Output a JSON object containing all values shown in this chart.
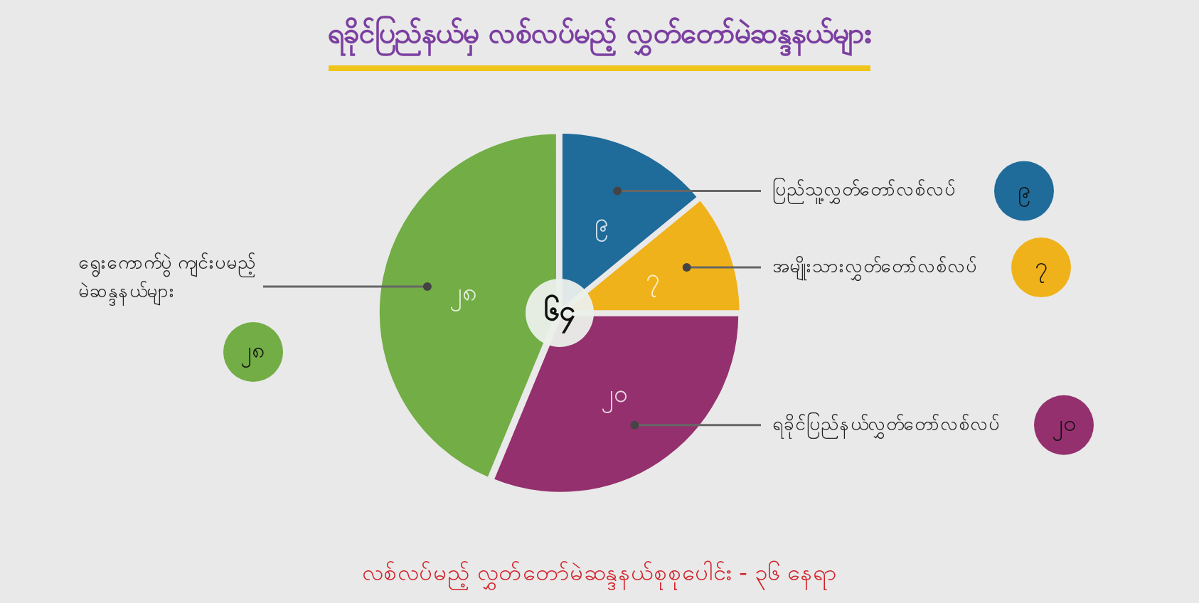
{
  "chart_data": {
    "type": "pie",
    "title": "ရခိုင်ပြည်နယ်မှ လစ်လပ်မည့် လွှတ်တော်မဲဆန္ဒနယ်များ",
    "categories": [
      "ပြည်သူ့လွှတ်တော်လစ်လပ်",
      "အမျိုးသားလွှတ်တော်လစ်လပ်",
      "ရခိုင်ပြည်နယ်လွှတ်တော်လစ်လပ်",
      "ရွေးကောက်ပွဲ ကျင်းပမည့် မဲဆန္ဒနယ်များ"
    ],
    "values": [
      9,
      7,
      20,
      28
    ],
    "value_labels": [
      "၉",
      "၇",
      "၂၀",
      "၂၈"
    ],
    "colors": [
      "#1f6b9a",
      "#f0b21a",
      "#94306e",
      "#72ad45"
    ],
    "annotations": [
      "၆၄",
      "လစ်လပ်မည့် လွှတ်တော်မဲဆန္ဒနယ်စုစုပေါင်း - ၃၆ နေရာ"
    ],
    "legend": false
  }
}
